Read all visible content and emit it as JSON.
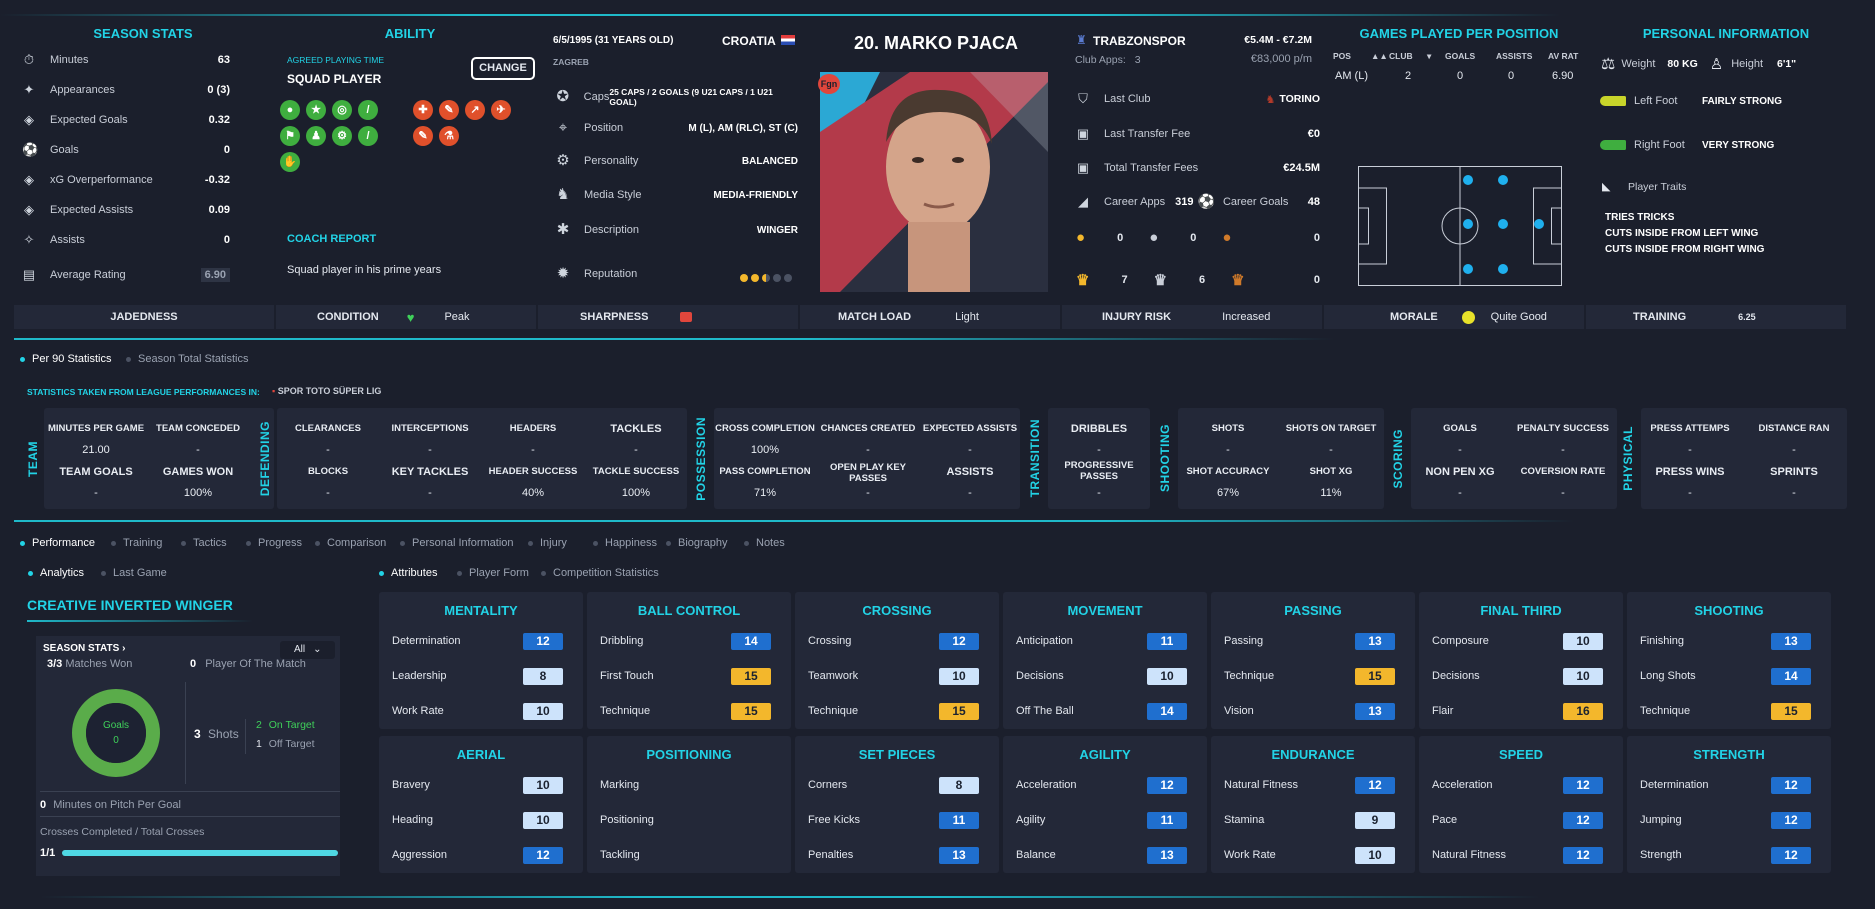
{
  "season_stats": {
    "title": "SEASON STATS",
    "rows": [
      {
        "label": "Minutes",
        "value": "63"
      },
      {
        "label": "Appearances",
        "value": "0 (3)"
      },
      {
        "label": "Expected Goals",
        "value": "0.32"
      },
      {
        "label": "Goals",
        "value": "0"
      },
      {
        "label": "xG Overperformance",
        "value": "-0.32"
      },
      {
        "label": "Expected Assists",
        "value": "0.09"
      },
      {
        "label": "Assists",
        "value": "0"
      },
      {
        "label": "Average Rating",
        "value": "6.90"
      }
    ]
  },
  "ability": {
    "title": "ABILITY",
    "agreed_label": "AGREED PLAYING TIME",
    "agreed_value": "SQUAD PLAYER",
    "change_label": "CHANGE",
    "coach_title": "COACH REPORT",
    "coach_text": "Squad player in his prime years"
  },
  "bio": {
    "dob": "6/5/1995 (31 YEARS OLD)",
    "birthplace": "ZAGREB",
    "nation": "CROATIA",
    "rows": [
      {
        "label": "Caps",
        "value": "25 CAPS / 2 GOALS (9 U21 CAPS / 1 U21 GOAL)"
      },
      {
        "label": "Position",
        "value": "M (L), AM (RLC), ST (C)"
      },
      {
        "label": "Personality",
        "value": "BALANCED"
      },
      {
        "label": "Media Style",
        "value": "MEDIA-FRIENDLY"
      },
      {
        "label": "Description",
        "value": "WINGER"
      },
      {
        "label": "Reputation",
        "value": ""
      }
    ],
    "reputation_stars": 2.5
  },
  "player": {
    "number_name": "20. MARKO PJACA",
    "badge": "Fgn"
  },
  "club": {
    "name": "TRABZONSPOR",
    "value_range": "€5.4M - €7.2M",
    "apps_label": "Club Apps:",
    "apps": "3",
    "wage": "€83,000 p/m",
    "last_club_label": "Last Club",
    "last_club": "TORINO",
    "last_fee_label": "Last Transfer Fee",
    "last_fee": "€0",
    "total_fee_label": "Total Transfer Fees",
    "total_fee": "€24.5M",
    "career_apps_label": "Career Apps",
    "career_apps": "319",
    "career_goals_label": "Career Goals",
    "career_goals": "48",
    "medals": [
      "0",
      "0",
      "0"
    ],
    "trophies": [
      "7",
      "6",
      "0"
    ]
  },
  "games_per_position": {
    "title": "GAMES PLAYED PER POSITION",
    "headers": [
      "POS",
      "CLUB",
      "GOALS",
      "ASSISTS",
      "AV RAT"
    ],
    "row": [
      "AM (L)",
      "2",
      "0",
      "0",
      "6.90"
    ]
  },
  "personal": {
    "title": "PERSONAL INFORMATION",
    "weight_label": "Weight",
    "weight": "80 KG",
    "height_label": "Height",
    "height": "6'1\"",
    "left_foot_label": "Left Foot",
    "left_foot": "FAIRLY STRONG",
    "right_foot_label": "Right Foot",
    "right_foot": "VERY STRONG",
    "traits_label": "Player Traits",
    "traits": [
      "TRIES TRICKS",
      "CUTS INSIDE FROM LEFT WING",
      "CUTS INSIDE FROM RIGHT WING"
    ]
  },
  "status": {
    "jadedness": "JADEDNESS",
    "condition": "CONDITION",
    "condition_val": "Peak",
    "sharpness": "SHARPNESS",
    "match_load": "MATCH LOAD",
    "match_load_val": "Light",
    "injury": "INJURY RISK",
    "injury_val": "Increased",
    "morale": "MORALE",
    "morale_val": "Quite Good",
    "training": "TRAINING",
    "training_val": "6.25"
  },
  "stat_tabs": {
    "per90": "Per 90 Statistics",
    "season": "Season Total Statistics",
    "source_label": "STATISTICS TAKEN FROM LEAGUE PERFORMANCES IN:",
    "league": "SPOR TOTO SÜPER LIG"
  },
  "groups": {
    "team": "TEAM",
    "defending": "DEFENDING",
    "possession": "POSSESSION",
    "transition": "TRANSITION",
    "shooting": "SHOOTING",
    "scoring": "SCORING",
    "physical": "PHYSICAL"
  },
  "stats": {
    "mpg": {
      "l": "MINUTES PER GAME",
      "v": "21.00"
    },
    "tc": {
      "l": "TEAM CONCEDED",
      "v": "-"
    },
    "tg": {
      "l": "TEAM GOALS",
      "v": "-"
    },
    "gw": {
      "l": "GAMES WON",
      "v": "100%"
    },
    "clr": {
      "l": "CLEARANCES",
      "v": "-"
    },
    "int": {
      "l": "INTERCEPTIONS",
      "v": "-"
    },
    "hdr": {
      "l": "HEADERS",
      "v": "-"
    },
    "tck": {
      "l": "TACKLES",
      "v": "-"
    },
    "blk": {
      "l": "BLOCKS",
      "v": "-"
    },
    "kt": {
      "l": "KEY TACKLES",
      "v": "-"
    },
    "hs": {
      "l": "HEADER SUCCESS",
      "v": "40%"
    },
    "ts": {
      "l": "TACKLE SUCCESS",
      "v": "100%"
    },
    "cc": {
      "l": "CROSS COMPLETION",
      "v": "100%"
    },
    "ch": {
      "l": "CHANCES CREATED",
      "v": "-"
    },
    "xa": {
      "l": "EXPECTED ASSISTS",
      "v": "-"
    },
    "pc": {
      "l": "PASS COMPLETION",
      "v": "71%"
    },
    "okp": {
      "l": "OPEN PLAY KEY PASSES",
      "v": "-"
    },
    "ast": {
      "l": "ASSISTS",
      "v": "-"
    },
    "drb": {
      "l": "DRIBBLES",
      "v": "-"
    },
    "pp": {
      "l": "PROGRESSIVE PASSES",
      "v": "-"
    },
    "sh": {
      "l": "SHOTS",
      "v": "-"
    },
    "sot": {
      "l": "SHOTS ON TARGET",
      "v": "-"
    },
    "sa": {
      "l": "SHOT ACCURACY",
      "v": "67%"
    },
    "sxg": {
      "l": "SHOT XG",
      "v": "11%"
    },
    "gl": {
      "l": "GOALS",
      "v": "-"
    },
    "ps": {
      "l": "PENALTY SUCCESS",
      "v": "-"
    },
    "npxg": {
      "l": "NON PEN XG",
      "v": "-"
    },
    "cr": {
      "l": "COVERSION RATE",
      "v": "-"
    },
    "pa": {
      "l": "PRESS ATTEMPS",
      "v": "-"
    },
    "dr": {
      "l": "DISTANCE RAN",
      "v": "-"
    },
    "pw": {
      "l": "PRESS WINS",
      "v": "-"
    },
    "spr": {
      "l": "SPRINTS",
      "v": "-"
    }
  },
  "nav_tabs": [
    "Performance",
    "Training",
    "Tactics",
    "Progress",
    "Comparison",
    "Personal Information",
    "Injury",
    "Happiness",
    "Biography",
    "Notes"
  ],
  "sub_tabs": {
    "analytics": "Analytics",
    "last_game": "Last Game",
    "attributes": "Attributes",
    "player_form": "Player Form",
    "competition": "Competition Statistics"
  },
  "analytics": {
    "role": "CREATIVE INVERTED WINGER",
    "season_stats": "SEASON STATS",
    "filter": "All",
    "matches_won": "3/3",
    "matches_won_label": "Matches Won",
    "potm": "0",
    "potm_label": "Player Of The Match",
    "goals_label": "Goals",
    "goals": "0",
    "shots": "3",
    "shots_label": "Shots",
    "on_target": "2",
    "on_target_label": "On Target",
    "off_target": "1",
    "off_target_label": "Off Target",
    "mins_per_goal": "0",
    "mins_per_goal_label": "Minutes on Pitch Per Goal",
    "crosses_label": "Crosses Completed / Total Crosses",
    "crosses": "1/1",
    "crosses_fraction": 1.0
  },
  "attributes": [
    {
      "title": "MENTALITY",
      "items": [
        [
          "Determination",
          "12",
          "b"
        ],
        [
          "Leadership",
          "8",
          "lb"
        ],
        [
          "Work Rate",
          "10",
          "lb"
        ]
      ]
    },
    {
      "title": "BALL CONTROL",
      "items": [
        [
          "Dribbling",
          "14",
          "b"
        ],
        [
          "First Touch",
          "15",
          "y"
        ],
        [
          "Technique",
          "15",
          "y"
        ]
      ]
    },
    {
      "title": "CROSSING",
      "items": [
        [
          "Crossing",
          "12",
          "b"
        ],
        [
          "Teamwork",
          "10",
          "lb"
        ],
        [
          "Technique",
          "15",
          "y"
        ]
      ]
    },
    {
      "title": "MOVEMENT",
      "items": [
        [
          "Anticipation",
          "11",
          "b"
        ],
        [
          "Decisions",
          "10",
          "lb"
        ],
        [
          "Off The Ball",
          "14",
          "b"
        ]
      ]
    },
    {
      "title": "PASSING",
      "items": [
        [
          "Passing",
          "13",
          "b"
        ],
        [
          "Technique",
          "15",
          "y"
        ],
        [
          "Vision",
          "13",
          "b"
        ]
      ]
    },
    {
      "title": "FINAL THIRD",
      "items": [
        [
          "Composure",
          "10",
          "lb"
        ],
        [
          "Decisions",
          "10",
          "lb"
        ],
        [
          "Flair",
          "16",
          "y"
        ]
      ]
    },
    {
      "title": "SHOOTING",
      "items": [
        [
          "Finishing",
          "13",
          "b"
        ],
        [
          "Long Shots",
          "14",
          "b"
        ],
        [
          "Technique",
          "15",
          "y"
        ]
      ]
    },
    {
      "title": "AERIAL",
      "items": [
        [
          "Bravery",
          "10",
          "lb"
        ],
        [
          "Heading",
          "10",
          "lb"
        ],
        [
          "Aggression",
          "12",
          "b"
        ]
      ]
    },
    {
      "title": "POSITIONING",
      "items": [
        [
          "Marking",
          "",
          ""
        ],
        [
          "Positioning",
          "",
          ""
        ],
        [
          "Tackling",
          "",
          ""
        ]
      ]
    },
    {
      "title": "SET PIECES",
      "items": [
        [
          "Corners",
          "8",
          "lb"
        ],
        [
          "Free Kicks",
          "11",
          "b"
        ],
        [
          "Penalties",
          "13",
          "b"
        ]
      ]
    },
    {
      "title": "AGILITY",
      "items": [
        [
          "Acceleration",
          "12",
          "b"
        ],
        [
          "Agility",
          "11",
          "b"
        ],
        [
          "Balance",
          "13",
          "b"
        ]
      ]
    },
    {
      "title": "ENDURANCE",
      "items": [
        [
          "Natural Fitness",
          "12",
          "b"
        ],
        [
          "Stamina",
          "9",
          "lb"
        ],
        [
          "Work Rate",
          "10",
          "lb"
        ]
      ]
    },
    {
      "title": "SPEED",
      "items": [
        [
          "Acceleration",
          "12",
          "b"
        ],
        [
          "Pace",
          "12",
          "b"
        ],
        [
          "Natural Fitness",
          "12",
          "b"
        ]
      ]
    },
    {
      "title": "STRENGTH",
      "items": [
        [
          "Determination",
          "12",
          "b"
        ],
        [
          "Jumping",
          "12",
          "b"
        ],
        [
          "Strength",
          "12",
          "b"
        ]
      ]
    }
  ]
}
